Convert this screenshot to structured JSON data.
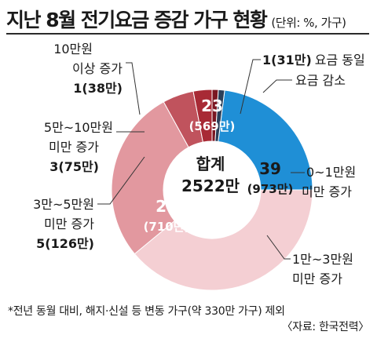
{
  "title": "지난 8월 전기요금 증감 가구 현황",
  "unit": "(단위: %, 가구)",
  "chart_data": {
    "type": "pie",
    "center_label": "합계",
    "center_total": "2522만",
    "slices": [
      {
        "category": "요금 감소",
        "value": 23,
        "count": "569만",
        "color": "#1f8fd6"
      },
      {
        "category": "0~1만원 미만 증가",
        "value": 39,
        "count": "973만",
        "color": "#f4cfd3"
      },
      {
        "category": "1만~3만원 미만 증가",
        "value": 28,
        "count": "710만",
        "color": "#e2989f"
      },
      {
        "category": "3만~5만원 미만 증가",
        "value": 5,
        "count": "126만",
        "color": "#c0535d"
      },
      {
        "category": "5만~10만원 미만 증가",
        "value": 3,
        "count": "75만",
        "color": "#a82a35"
      },
      {
        "category": "10만원 이상 증가",
        "value": 1,
        "count": "38만",
        "color": "#7a1722"
      },
      {
        "category": "요금 동일",
        "value": 1,
        "count": "31만",
        "color": "#2b3f59"
      }
    ]
  },
  "labels": {
    "same": {
      "pct": "1",
      "count": "(31만)",
      "text": "요금 동일"
    },
    "decrease": {
      "text": "요금 감소"
    },
    "over10": {
      "line1": "10만원",
      "line2": "이상 증가",
      "pct": "1",
      "count": "(38만)"
    },
    "r5to10": {
      "line1": "5만~10만원",
      "line2": "미만 증가",
      "pct": "3",
      "count": "(75만)"
    },
    "r3to5": {
      "line1": "3만~5만원",
      "line2": "미만 증가",
      "pct": "5",
      "count": "(126만)"
    },
    "r0to1": {
      "line1": "0~1만원",
      "line2": "미만 증가"
    },
    "r1to3": {
      "line1": "1만~3만원",
      "line2": "미만 증가"
    }
  },
  "inner_values": {
    "decrease": {
      "value": "23",
      "count": "(569만)"
    },
    "r0to1": {
      "value": "39",
      "count": "(973만)"
    },
    "r1to3": {
      "value": "28",
      "count": "(710만)"
    }
  },
  "footnote": "*전년 동월 대비, 해지·신설 등 변동 가구(약 330만 가구) 제외",
  "source": "〈자료: 한국전력〉"
}
